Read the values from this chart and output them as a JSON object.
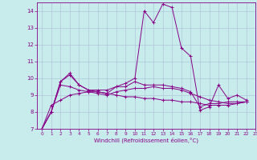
{
  "xlabel": "Windchill (Refroidissement éolien,°C)",
  "xlim": [
    -0.5,
    23
  ],
  "ylim": [
    7,
    14.5
  ],
  "yticks": [
    7,
    8,
    9,
    10,
    11,
    12,
    13,
    14
  ],
  "xticks": [
    0,
    1,
    2,
    3,
    4,
    5,
    6,
    7,
    8,
    9,
    10,
    11,
    12,
    13,
    14,
    15,
    16,
    17,
    18,
    19,
    20,
    21,
    22,
    23
  ],
  "background_color": "#c8ecec",
  "grid_color": "#b0c8d8",
  "line_color": "#880088",
  "series": [
    {
      "x": [
        0,
        1,
        2,
        3,
        4,
        5,
        6,
        7,
        8,
        9,
        10,
        11,
        12,
        13,
        14,
        15,
        16,
        17,
        18,
        19,
        20,
        21,
        22
      ],
      "y": [
        7.0,
        8.0,
        9.8,
        10.3,
        9.6,
        9.3,
        9.2,
        9.1,
        9.5,
        9.7,
        10.0,
        14.0,
        13.3,
        14.4,
        14.2,
        11.8,
        11.3,
        8.1,
        8.3,
        9.6,
        8.8,
        9.0,
        8.7
      ]
    },
    {
      "x": [
        0,
        1,
        2,
        3,
        4,
        5,
        6,
        7,
        8,
        9,
        10,
        11,
        12,
        13,
        14,
        15,
        16,
        17,
        18,
        19,
        20,
        21,
        22
      ],
      "y": [
        7.0,
        8.0,
        9.8,
        10.2,
        9.6,
        9.3,
        9.3,
        9.3,
        9.5,
        9.5,
        9.8,
        9.6,
        9.6,
        9.6,
        9.5,
        9.4,
        9.2,
        8.3,
        8.5,
        8.5,
        8.6,
        8.6,
        8.6
      ]
    },
    {
      "x": [
        0,
        1,
        2,
        3,
        4,
        5,
        6,
        7,
        8,
        9,
        10,
        11,
        12,
        13,
        14,
        15,
        16,
        17,
        18,
        19,
        20,
        21,
        22
      ],
      "y": [
        7.0,
        8.0,
        9.6,
        9.5,
        9.3,
        9.2,
        9.1,
        9.0,
        9.2,
        9.3,
        9.4,
        9.4,
        9.5,
        9.4,
        9.4,
        9.3,
        9.1,
        8.9,
        8.7,
        8.6,
        8.5,
        8.5,
        8.6
      ]
    },
    {
      "x": [
        0,
        1,
        2,
        3,
        4,
        5,
        6,
        7,
        8,
        9,
        10,
        11,
        12,
        13,
        14,
        15,
        16,
        17,
        18,
        19,
        20,
        21,
        22
      ],
      "y": [
        7.0,
        8.4,
        8.7,
        9.0,
        9.1,
        9.2,
        9.2,
        9.1,
        9.0,
        8.9,
        8.9,
        8.8,
        8.8,
        8.7,
        8.7,
        8.6,
        8.6,
        8.5,
        8.4,
        8.4,
        8.4,
        8.5,
        8.6
      ]
    }
  ]
}
